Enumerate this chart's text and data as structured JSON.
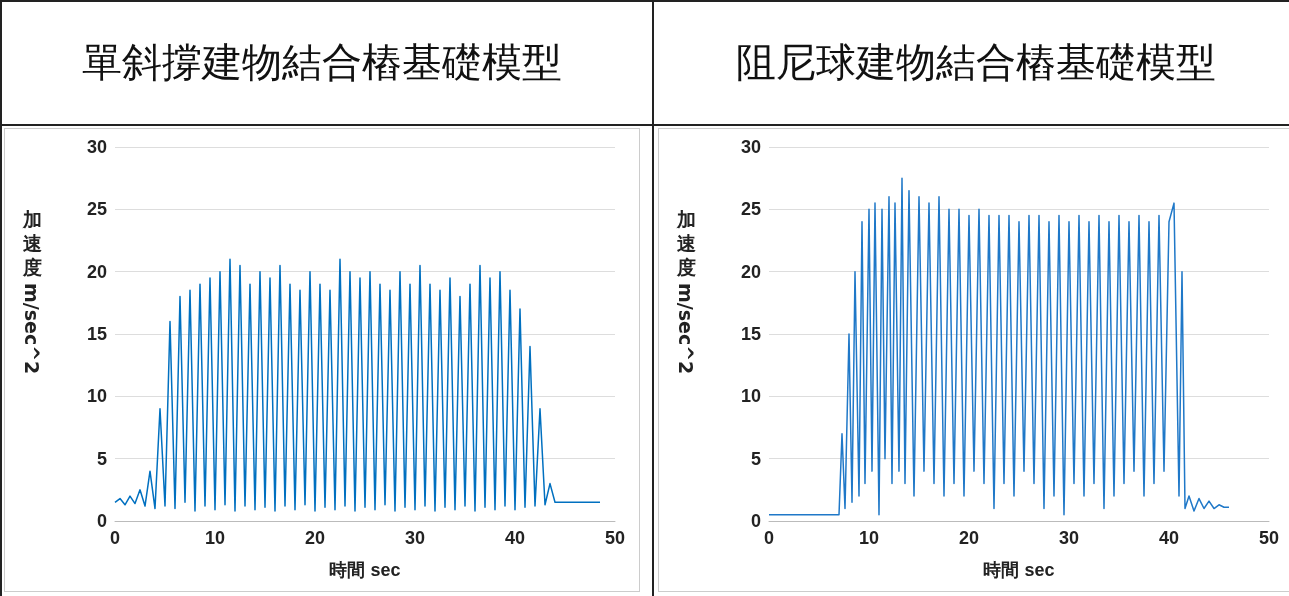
{
  "chart_data": [
    {
      "type": "line",
      "title": "單斜撐建物結合樁基礎模型",
      "xlabel": "時間 sec",
      "ylabel": "加速度 m/sec^2",
      "color": "#0070c0",
      "marker": "none",
      "line_style": "solid",
      "grid": "y",
      "xlim": [
        0,
        50
      ],
      "xticks": [
        0,
        10,
        20,
        30,
        40,
        50
      ],
      "ylim": [
        0,
        30
      ],
      "yticks": [
        0,
        5,
        10,
        15,
        20,
        25,
        30
      ],
      "x": [
        0,
        0.5,
        1,
        1.5,
        2,
        2.5,
        3,
        3.5,
        4,
        4.5,
        5,
        5.5,
        6,
        6.5,
        7,
        7.5,
        8,
        8.5,
        9,
        9.5,
        10,
        10.5,
        11,
        11.5,
        12,
        12.5,
        13,
        13.5,
        14,
        14.5,
        15,
        15.5,
        16,
        16.5,
        17,
        17.5,
        18,
        18.5,
        19,
        19.5,
        20,
        20.5,
        21,
        21.5,
        22,
        22.5,
        23,
        23.5,
        24,
        24.5,
        25,
        25.5,
        26,
        26.5,
        27,
        27.5,
        28,
        28.5,
        29,
        29.5,
        30,
        30.5,
        31,
        31.5,
        32,
        32.5,
        33,
        33.5,
        34,
        34.5,
        35,
        35.5,
        36,
        36.5,
        37,
        37.5,
        38,
        38.5,
        39,
        39.5,
        40,
        40.5,
        41,
        41.5,
        42,
        42.5,
        43,
        43.5,
        44,
        45,
        46,
        47,
        48,
        48.5
      ],
      "values": [
        1.5,
        1.8,
        1.3,
        2,
        1.4,
        2.5,
        1.2,
        4,
        1,
        9,
        1.2,
        16,
        1,
        18,
        1.5,
        18.5,
        0.8,
        19,
        1.2,
        19.5,
        0.9,
        20,
        1.3,
        21,
        0.8,
        20.5,
        1.2,
        19,
        0.9,
        20,
        1.1,
        19.5,
        0.8,
        20.5,
        1.2,
        19,
        0.9,
        18.5,
        1.3,
        20,
        0.8,
        19,
        1.1,
        18.5,
        0.9,
        21,
        1.2,
        20,
        0.8,
        19.5,
        1.1,
        20,
        0.9,
        19,
        1.3,
        18.5,
        0.8,
        20,
        1.1,
        19,
        0.9,
        20.5,
        1.2,
        19,
        0.8,
        18.5,
        1.1,
        19.5,
        0.9,
        18,
        1.2,
        19,
        0.8,
        20.5,
        1.1,
        19.5,
        0.9,
        20,
        1.2,
        18.5,
        0.9,
        17,
        1.1,
        14,
        1.2,
        9,
        1.3,
        3,
        1.5,
        1.5,
        1.5,
        1.5,
        1.5,
        1.5
      ]
    },
    {
      "type": "line",
      "title": "阻尼球建物結合樁基礎模型",
      "xlabel": "時間 sec",
      "ylabel": "加速度 m/sec^2",
      "color": "#1f78c8",
      "marker": "none",
      "line_style": "solid",
      "grid": "y",
      "xlim": [
        0,
        50
      ],
      "xticks": [
        0,
        10,
        20,
        30,
        40,
        50
      ],
      "ylim": [
        0,
        30
      ],
      "yticks": [
        0,
        5,
        10,
        15,
        20,
        25,
        30
      ],
      "x": [
        0,
        1,
        2,
        3,
        4,
        5,
        6,
        6.5,
        7,
        7.3,
        7.6,
        8,
        8.3,
        8.6,
        9,
        9.3,
        9.6,
        10,
        10.3,
        10.6,
        11,
        11.3,
        11.6,
        12,
        12.3,
        12.6,
        13,
        13.3,
        13.6,
        14,
        14.5,
        15,
        15.5,
        16,
        16.5,
        17,
        17.5,
        18,
        18.5,
        19,
        19.5,
        20,
        20.5,
        21,
        21.5,
        22,
        22.5,
        23,
        23.5,
        24,
        24.5,
        25,
        25.5,
        26,
        26.5,
        27,
        27.5,
        28,
        28.5,
        29,
        29.5,
        30,
        30.5,
        31,
        31.5,
        32,
        32.5,
        33,
        33.5,
        34,
        34.5,
        35,
        35.5,
        36,
        36.5,
        37,
        37.5,
        38,
        38.5,
        39,
        39.5,
        40,
        40.5,
        41,
        41.3,
        41.6,
        42,
        42.5,
        43,
        43.5,
        44,
        44.5,
        45,
        45.5,
        46
      ],
      "values": [
        0.5,
        0.5,
        0.5,
        0.5,
        0.5,
        0.5,
        0.5,
        0.5,
        0.5,
        7,
        1,
        15,
        1.5,
        20,
        2,
        24,
        3,
        25,
        4,
        25.5,
        0.5,
        25,
        5,
        26,
        3,
        25.5,
        4,
        27.5,
        3,
        26.5,
        2,
        26,
        4,
        25.5,
        3,
        26,
        2,
        25,
        3,
        25,
        2,
        24.5,
        4,
        25,
        3,
        24.5,
        1,
        24.5,
        3,
        24.5,
        2,
        24,
        4,
        24.5,
        3,
        24.5,
        1,
        24,
        2,
        24.5,
        0.5,
        24,
        3,
        24.5,
        2,
        24,
        3,
        24.5,
        1,
        24,
        2,
        24.5,
        3,
        24,
        4,
        24.5,
        2,
        24,
        3,
        24.5,
        4,
        24,
        25.5,
        2,
        20,
        1,
        2,
        0.8,
        1.8,
        1,
        1.6,
        1,
        1.3,
        1.1,
        1.1
      ]
    }
  ]
}
